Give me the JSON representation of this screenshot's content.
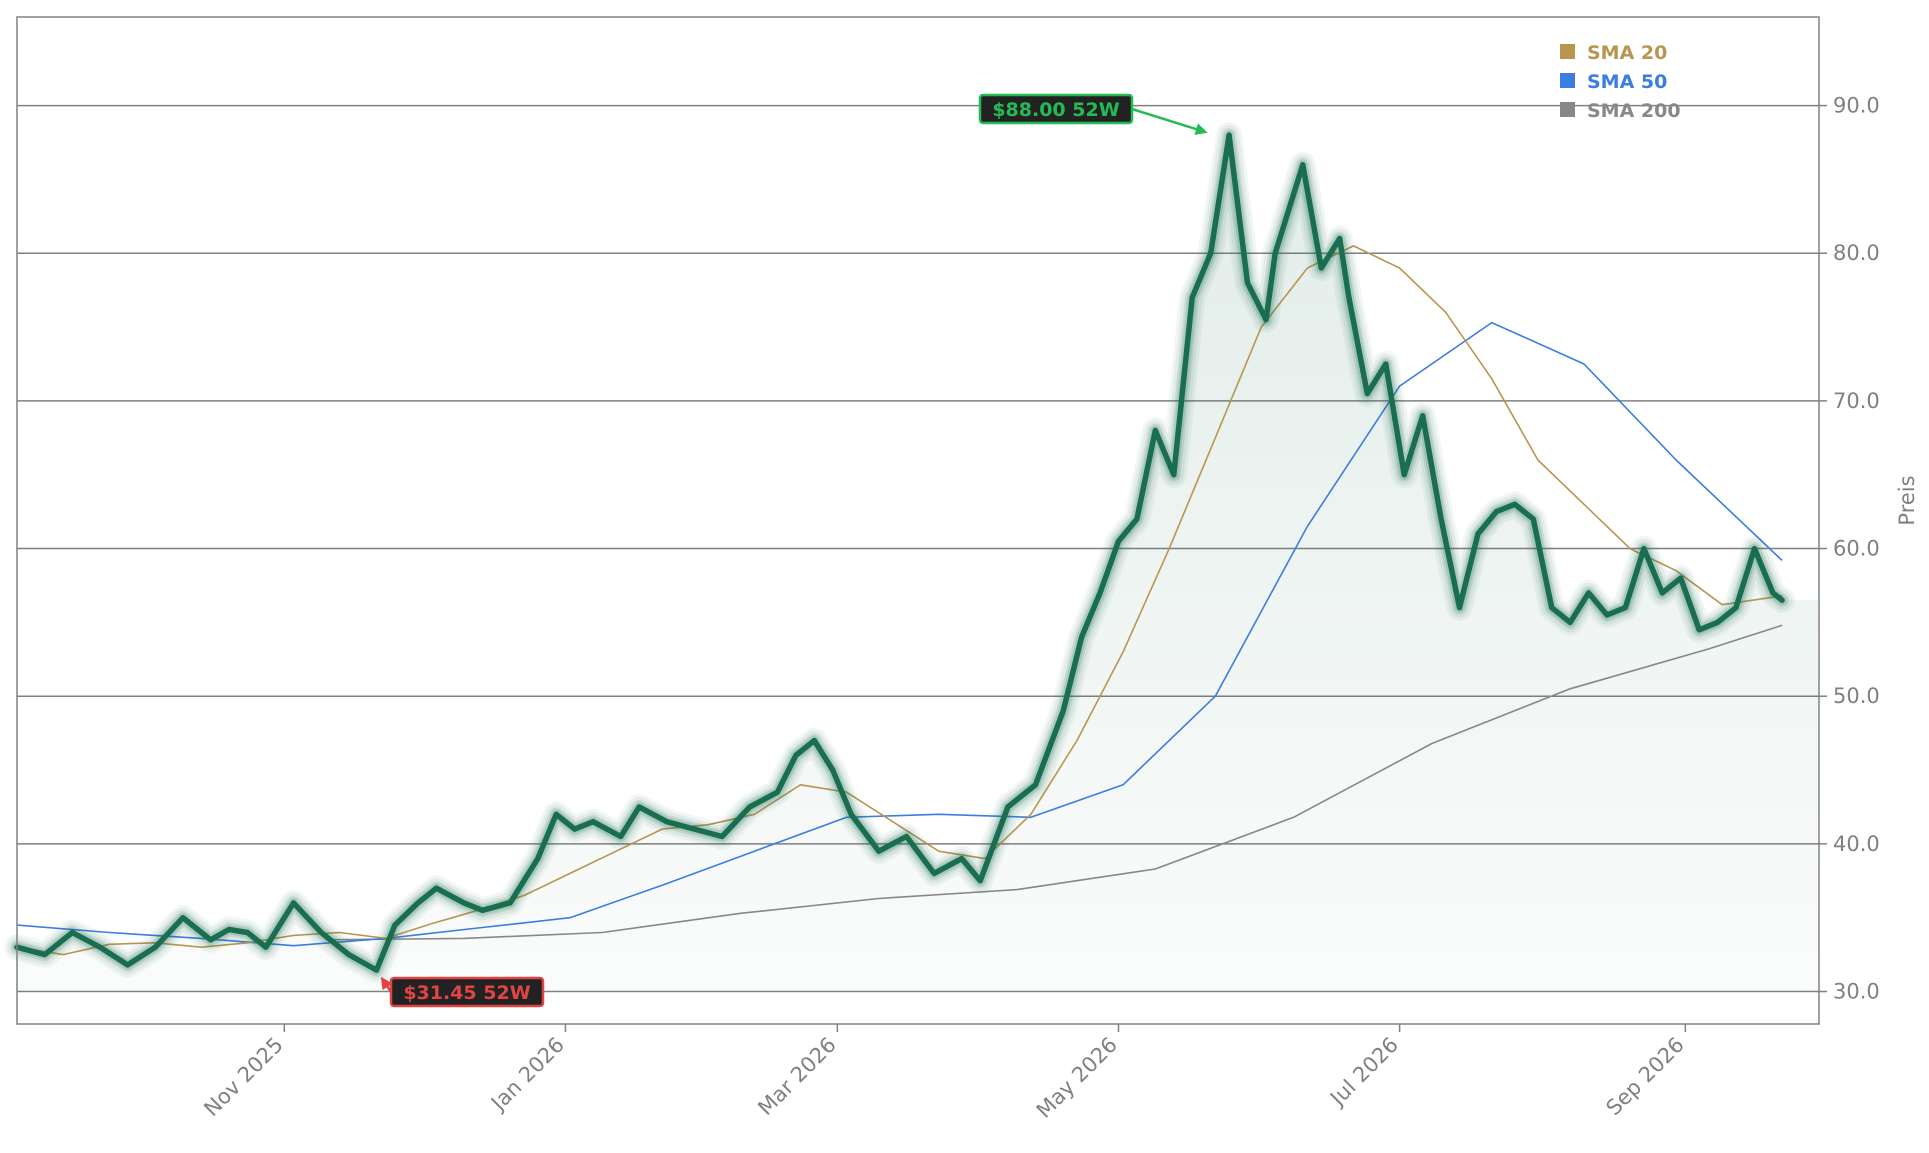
{
  "chart_data": {
    "type": "line",
    "ylabel": "Preis",
    "ylim": [
      27.8,
      96.0
    ],
    "yticks": [
      30,
      40,
      50,
      60,
      70,
      80,
      90
    ],
    "ytick_labels": [
      "30.0",
      "40.0",
      "50.0",
      "60.0",
      "70.0",
      "80.0",
      "90.0"
    ],
    "xlim": [
      "2025-09-04",
      "2026-09-30"
    ],
    "xticks": [
      {
        "date": "2025-11-01",
        "label": "Nov 2025"
      },
      {
        "date": "2026-01-01",
        "label": "Jan 2026"
      },
      {
        "date": "2026-03-01",
        "label": "Mar 2026"
      },
      {
        "date": "2026-05-01",
        "label": "May 2026"
      },
      {
        "date": "2026-07-01",
        "label": "Jul 2026"
      },
      {
        "date": "2026-09-01",
        "label": "Sep 2026"
      }
    ],
    "grid": "horizontal",
    "legend_position": "top-right",
    "legend": [
      {
        "label": "SMA 20",
        "color": "#b8964f"
      },
      {
        "label": "SMA 50",
        "color": "#3b7de0"
      },
      {
        "label": "SMA 200",
        "color": "#888888"
      }
    ],
    "price_color": "#1a6e50",
    "price": {
      "x": [
        "2025-09-04",
        "2025-09-10",
        "2025-09-16",
        "2025-09-22",
        "2025-09-28",
        "2025-10-04",
        "2025-10-10",
        "2025-10-16",
        "2025-10-20",
        "2025-10-24",
        "2025-10-28",
        "2025-11-03",
        "2025-11-09",
        "2025-11-15",
        "2025-11-21",
        "2025-11-25",
        "2025-11-30",
        "2025-12-04",
        "2025-12-10",
        "2025-12-14",
        "2025-12-20",
        "2025-12-26",
        "2025-12-30",
        "2026-01-03",
        "2026-01-07",
        "2026-01-13",
        "2026-01-17",
        "2026-01-23",
        "2026-01-29",
        "2026-02-04",
        "2026-02-10",
        "2026-02-16",
        "2026-02-20",
        "2026-02-24",
        "2026-02-28",
        "2026-03-04",
        "2026-03-10",
        "2026-03-16",
        "2026-03-22",
        "2026-03-28",
        "2026-04-01",
        "2026-04-07",
        "2026-04-13",
        "2026-04-19",
        "2026-04-23",
        "2026-04-27",
        "2026-05-01",
        "2026-05-05",
        "2026-05-09",
        "2026-05-13",
        "2026-05-17",
        "2026-05-21",
        "2026-05-25",
        "2026-05-29",
        "2026-06-02",
        "2026-06-04",
        "2026-06-06",
        "2026-06-10",
        "2026-06-14",
        "2026-06-18",
        "2026-06-20",
        "2026-06-24",
        "2026-06-28",
        "2026-07-02",
        "2026-07-06",
        "2026-07-10",
        "2026-07-14",
        "2026-07-18",
        "2026-07-22",
        "2026-07-26",
        "2026-07-30",
        "2026-08-03",
        "2026-08-07",
        "2026-08-11",
        "2026-08-15",
        "2026-08-19",
        "2026-08-23",
        "2026-08-27",
        "2026-08-31",
        "2026-09-04",
        "2026-09-08",
        "2026-09-12",
        "2026-09-16",
        "2026-09-20",
        "2026-09-22"
      ],
      "y": [
        33.0,
        32.5,
        34.0,
        33.0,
        31.8,
        33.0,
        35.0,
        33.5,
        34.2,
        34.0,
        33.0,
        36.0,
        34.0,
        32.5,
        31.45,
        34.5,
        36.0,
        37.0,
        36.0,
        35.5,
        36.0,
        39.0,
        42.0,
        41.0,
        41.5,
        40.5,
        42.5,
        41.5,
        41.0,
        40.5,
        42.5,
        43.5,
        46.0,
        47.0,
        45.0,
        42.0,
        39.5,
        40.5,
        38.0,
        39.0,
        37.5,
        42.5,
        44.0,
        49.0,
        54.0,
        57.0,
        60.5,
        62.0,
        68.0,
        65.0,
        77.0,
        80.0,
        88.0,
        78.0,
        75.5,
        80.0,
        82.0,
        86.0,
        79.0,
        81.0,
        77.0,
        70.5,
        72.5,
        65.0,
        69.0,
        62.0,
        56.0,
        61.0,
        62.5,
        63.0,
        62.0,
        56.0,
        55.0,
        57.0,
        55.5,
        56.0,
        60.0,
        57.0,
        58.0,
        54.5,
        55.0,
        56.0,
        60.0,
        57.0,
        56.5
      ]
    },
    "sma20": {
      "x": [
        "2025-09-04",
        "2025-09-14",
        "2025-09-24",
        "2025-10-04",
        "2025-10-14",
        "2025-10-24",
        "2025-11-03",
        "2025-11-13",
        "2025-11-23",
        "2025-12-03",
        "2025-12-13",
        "2025-12-23",
        "2026-01-02",
        "2026-01-12",
        "2026-01-22",
        "2026-02-01",
        "2026-02-11",
        "2026-02-21",
        "2026-03-03",
        "2026-03-13",
        "2026-03-23",
        "2026-04-02",
        "2026-04-12",
        "2026-04-22",
        "2026-05-02",
        "2026-05-12",
        "2026-05-22",
        "2026-06-01",
        "2026-06-11",
        "2026-06-21",
        "2026-07-01",
        "2026-07-11",
        "2026-07-21",
        "2026-07-31",
        "2026-08-10",
        "2026-08-20",
        "2026-08-30",
        "2026-09-09",
        "2026-09-22"
      ],
      "y": [
        33.0,
        32.5,
        33.2,
        33.3,
        33.0,
        33.3,
        33.8,
        34.0,
        33.6,
        34.6,
        35.5,
        36.5,
        38.0,
        39.5,
        41.0,
        41.3,
        42.0,
        44.0,
        43.5,
        41.5,
        39.5,
        39.0,
        42.0,
        47.0,
        53.0,
        60.0,
        67.5,
        75.0,
        79.0,
        80.5,
        79.0,
        76.0,
        71.5,
        66.0,
        63.0,
        60.0,
        58.5,
        56.2,
        56.8
      ]
    },
    "sma50": {
      "x": [
        "2025-09-04",
        "2025-09-24",
        "2025-10-14",
        "2025-11-03",
        "2025-11-23",
        "2025-12-13",
        "2026-01-02",
        "2026-01-22",
        "2026-02-11",
        "2026-03-03",
        "2026-03-23",
        "2026-04-12",
        "2026-05-02",
        "2026-05-22",
        "2026-06-11",
        "2026-07-01",
        "2026-07-21",
        "2026-08-10",
        "2026-08-30",
        "2026-09-22"
      ],
      "y": [
        34.5,
        34.0,
        33.6,
        33.1,
        33.6,
        34.3,
        35.0,
        37.2,
        39.5,
        41.8,
        42.0,
        41.8,
        44.0,
        50.0,
        61.5,
        71.0,
        75.3,
        72.5,
        66.0,
        59.2
      ]
    },
    "sma200": {
      "x": [
        "2025-11-10",
        "2025-12-10",
        "2026-01-09",
        "2026-02-08",
        "2026-03-10",
        "2026-04-09",
        "2026-05-09",
        "2026-06-08",
        "2026-07-08",
        "2026-08-07",
        "2026-09-06",
        "2026-09-22"
      ],
      "y": [
        33.5,
        33.6,
        34.0,
        35.3,
        36.3,
        36.9,
        38.3,
        41.8,
        46.8,
        50.5,
        53.2,
        54.8
      ]
    },
    "annotations": [
      {
        "text": "$88.00 52W",
        "value": 88.0,
        "date": "2026-05-22",
        "type": "high",
        "color": "#22bb55"
      },
      {
        "text": "$31.45 52W",
        "value": 31.45,
        "date": "2025-11-21",
        "type": "low",
        "color": "#e04444"
      }
    ]
  }
}
